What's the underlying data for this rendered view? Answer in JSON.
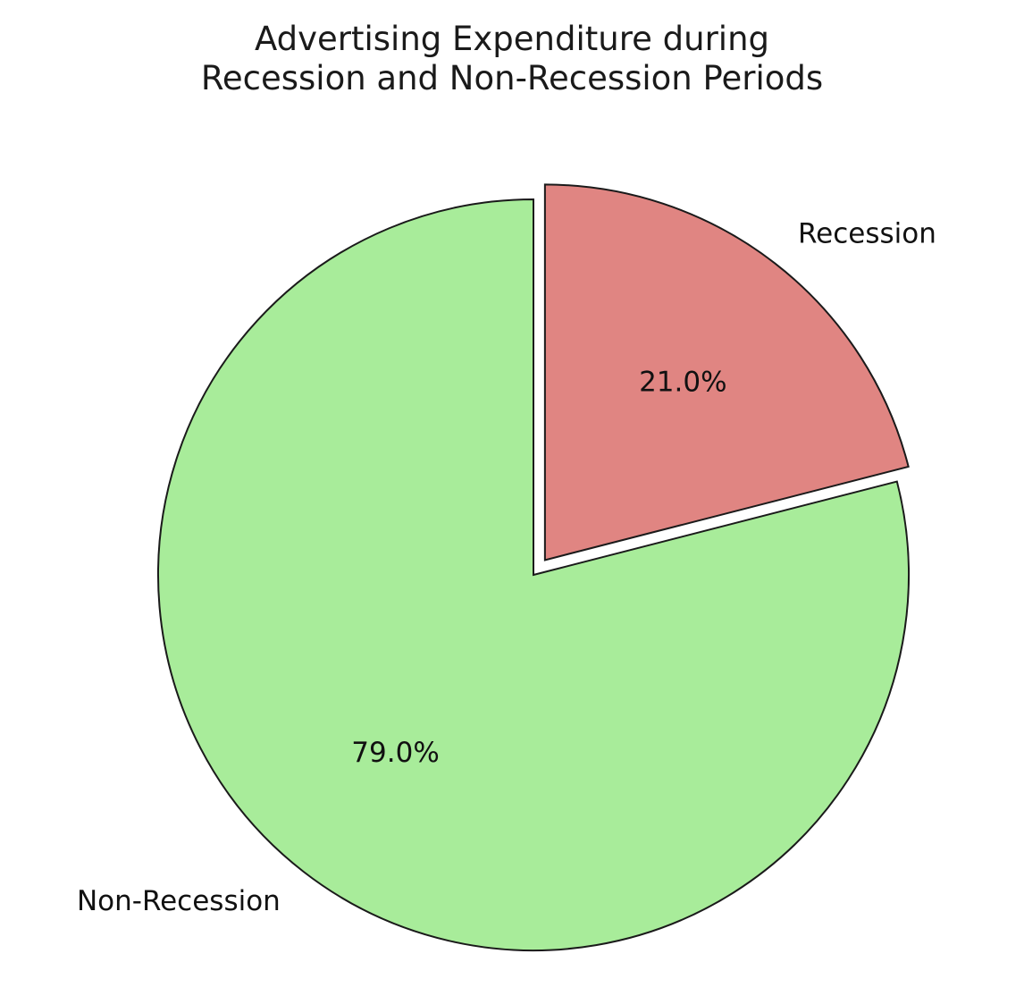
{
  "chart_data": {
    "type": "pie",
    "title_lines": [
      "Advertising Expenditure during",
      "Recession and Non-Recession Periods"
    ],
    "slices": [
      {
        "label": "Recession",
        "value": 21.0,
        "pct_label": "21.0%",
        "color": "#e08582",
        "exploded": true
      },
      {
        "label": "Non-Recession",
        "value": 79.0,
        "pct_label": "79.0%",
        "color": "#a8ec9a",
        "exploded": false
      }
    ],
    "start_angle_deg": 90,
    "direction": "clockwise",
    "edge_color": "#1a1a1a"
  }
}
